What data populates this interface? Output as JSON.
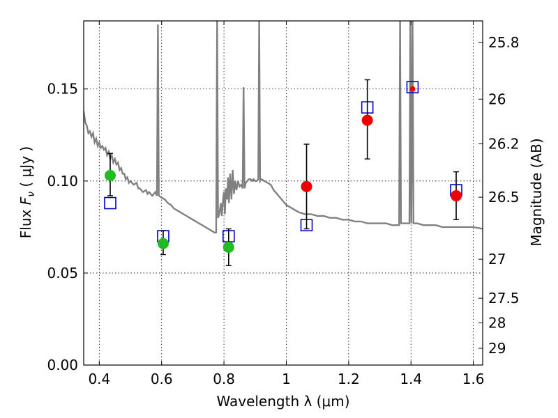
{
  "chart_data": {
    "type": "scatter",
    "xlabel": "Wavelength  λ (μm)",
    "ylabel_prefix": "Flux  ",
    "ylabel_symbol": "F",
    "ylabel_subscript": "ν",
    "ylabel_suffix": "  ( μJy )",
    "y2label": "Magnitude (AB)",
    "xlim": [
      0.35,
      1.63
    ],
    "ylim": [
      0.0,
      0.187
    ],
    "grid": true,
    "x_ticks": [
      0.4,
      0.6,
      0.8,
      1.0,
      1.2,
      1.4,
      1.6
    ],
    "x_tick_labels": [
      "0.4",
      "0.6",
      "0.8",
      "1",
      "1.2",
      "1.4",
      "1.6"
    ],
    "y_ticks": [
      0.0,
      0.05,
      0.1,
      0.15
    ],
    "y_tick_labels": [
      "0.00",
      "0.05",
      "0.10",
      "0.15"
    ],
    "y2_ticks": [
      {
        "label": "25.8",
        "flux": 0.1753
      },
      {
        "label": "26",
        "flux": 0.1445
      },
      {
        "label": "26.2",
        "flux": 0.1202
      },
      {
        "label": "26.5",
        "flux": 0.0912
      },
      {
        "label": "27",
        "flux": 0.0575
      },
      {
        "label": "27.5",
        "flux": 0.0363
      },
      {
        "label": "28",
        "flux": 0.0229
      },
      {
        "label": "29",
        "flux": 0.0091
      }
    ],
    "colors": {
      "spectrum": "#808080",
      "model": "#0000cc",
      "optical": "#22bb22",
      "infrared": "#ee0000",
      "errorbar": "#000000"
    },
    "spectrum": [
      [
        0.35,
        0.138
      ],
      [
        0.355,
        0.132
      ],
      [
        0.36,
        0.13
      ],
      [
        0.365,
        0.126
      ],
      [
        0.37,
        0.127
      ],
      [
        0.375,
        0.124
      ],
      [
        0.38,
        0.126
      ],
      [
        0.385,
        0.121
      ],
      [
        0.39,
        0.123
      ],
      [
        0.395,
        0.119
      ],
      [
        0.4,
        0.121
      ],
      [
        0.405,
        0.118
      ],
      [
        0.41,
        0.119
      ],
      [
        0.415,
        0.117
      ],
      [
        0.42,
        0.118
      ],
      [
        0.425,
        0.114
      ],
      [
        0.43,
        0.116
      ],
      [
        0.435,
        0.112
      ],
      [
        0.44,
        0.114
      ],
      [
        0.445,
        0.11
      ],
      [
        0.45,
        0.112
      ],
      [
        0.455,
        0.109
      ],
      [
        0.46,
        0.11
      ],
      [
        0.465,
        0.106
      ],
      [
        0.47,
        0.107
      ],
      [
        0.475,
        0.104
      ],
      [
        0.48,
        0.104
      ],
      [
        0.485,
        0.101
      ],
      [
        0.49,
        0.102
      ],
      [
        0.495,
        0.099
      ],
      [
        0.5,
        0.1
      ],
      [
        0.51,
        0.098
      ],
      [
        0.52,
        0.099
      ],
      [
        0.525,
        0.096
      ],
      [
        0.53,
        0.096
      ],
      [
        0.54,
        0.094
      ],
      [
        0.55,
        0.095
      ],
      [
        0.555,
        0.093
      ],
      [
        0.56,
        0.094
      ],
      [
        0.57,
        0.092
      ],
      [
        0.58,
        0.094
      ],
      [
        0.585,
        0.092
      ],
      [
        0.588,
        0.185
      ],
      [
        0.591,
        0.092
      ],
      [
        0.6,
        0.091
      ],
      [
        0.61,
        0.09
      ],
      [
        0.62,
        0.088
      ],
      [
        0.63,
        0.087
      ],
      [
        0.64,
        0.085
      ],
      [
        0.65,
        0.084
      ],
      [
        0.66,
        0.083
      ],
      [
        0.67,
        0.082
      ],
      [
        0.68,
        0.081
      ],
      [
        0.69,
        0.08
      ],
      [
        0.7,
        0.079
      ],
      [
        0.71,
        0.078
      ],
      [
        0.72,
        0.077
      ],
      [
        0.73,
        0.076
      ],
      [
        0.74,
        0.075
      ],
      [
        0.75,
        0.074
      ],
      [
        0.76,
        0.073
      ],
      [
        0.77,
        0.072
      ],
      [
        0.775,
        0.072
      ],
      [
        0.778,
        0.188
      ],
      [
        0.781,
        0.08
      ],
      [
        0.785,
        0.082
      ],
      [
        0.79,
        0.088
      ],
      [
        0.793,
        0.081
      ],
      [
        0.797,
        0.09
      ],
      [
        0.8,
        0.094
      ],
      [
        0.803,
        0.082
      ],
      [
        0.806,
        0.096
      ],
      [
        0.81,
        0.09
      ],
      [
        0.813,
        0.102
      ],
      [
        0.816,
        0.088
      ],
      [
        0.82,
        0.104
      ],
      [
        0.824,
        0.09
      ],
      [
        0.828,
        0.106
      ],
      [
        0.832,
        0.093
      ],
      [
        0.836,
        0.1
      ],
      [
        0.84,
        0.095
      ],
      [
        0.845,
        0.1
      ],
      [
        0.85,
        0.097
      ],
      [
        0.855,
        0.098
      ],
      [
        0.86,
        0.096
      ],
      [
        0.863,
        0.151
      ],
      [
        0.866,
        0.096
      ],
      [
        0.87,
        0.099
      ],
      [
        0.875,
        0.1
      ],
      [
        0.88,
        0.101
      ],
      [
        0.885,
        0.101
      ],
      [
        0.89,
        0.1
      ],
      [
        0.895,
        0.101
      ],
      [
        0.9,
        0.1
      ],
      [
        0.905,
        0.1
      ],
      [
        0.91,
        0.101
      ],
      [
        0.913,
        0.188
      ],
      [
        0.916,
        0.1
      ],
      [
        0.92,
        0.101
      ],
      [
        0.93,
        0.1
      ],
      [
        0.94,
        0.099
      ],
      [
        0.95,
        0.098
      ],
      [
        0.96,
        0.095
      ],
      [
        0.97,
        0.093
      ],
      [
        0.98,
        0.091
      ],
      [
        0.99,
        0.089
      ],
      [
        1.0,
        0.087
      ],
      [
        1.01,
        0.086
      ],
      [
        1.02,
        0.085
      ],
      [
        1.03,
        0.084
      ],
      [
        1.04,
        0.083
      ],
      [
        1.06,
        0.082
      ],
      [
        1.08,
        0.082
      ],
      [
        1.1,
        0.081
      ],
      [
        1.12,
        0.081
      ],
      [
        1.14,
        0.08
      ],
      [
        1.16,
        0.08
      ],
      [
        1.18,
        0.079
      ],
      [
        1.2,
        0.079
      ],
      [
        1.22,
        0.078
      ],
      [
        1.24,
        0.078
      ],
      [
        1.26,
        0.077
      ],
      [
        1.28,
        0.077
      ],
      [
        1.3,
        0.077
      ],
      [
        1.32,
        0.077
      ],
      [
        1.34,
        0.076
      ],
      [
        1.362,
        0.076
      ],
      [
        1.365,
        0.188
      ],
      [
        1.368,
        0.077
      ],
      [
        1.38,
        0.077
      ],
      [
        1.395,
        0.077
      ],
      [
        1.398,
        0.188
      ],
      [
        1.401,
        0.077
      ],
      [
        1.405,
        0.188
      ],
      [
        1.408,
        0.077
      ],
      [
        1.42,
        0.077
      ],
      [
        1.44,
        0.076
      ],
      [
        1.46,
        0.076
      ],
      [
        1.48,
        0.076
      ],
      [
        1.5,
        0.075
      ],
      [
        1.52,
        0.075
      ],
      [
        1.54,
        0.075
      ],
      [
        1.56,
        0.075
      ],
      [
        1.58,
        0.075
      ],
      [
        1.6,
        0.075
      ],
      [
        1.63,
        0.074
      ]
    ],
    "model_points": [
      {
        "x": 0.435,
        "y": 0.088
      },
      {
        "x": 0.605,
        "y": 0.07
      },
      {
        "x": 0.815,
        "y": 0.07
      },
      {
        "x": 1.065,
        "y": 0.076
      },
      {
        "x": 1.26,
        "y": 0.14
      },
      {
        "x": 1.405,
        "y": 0.151
      },
      {
        "x": 1.545,
        "y": 0.095
      }
    ],
    "observed_points": [
      {
        "x": 0.435,
        "y": 0.103,
        "err_lo": 0.011,
        "err_hi": 0.012,
        "group": "optical"
      },
      {
        "x": 0.605,
        "y": 0.066,
        "err_lo": 0.006,
        "err_hi": 0.007,
        "group": "optical"
      },
      {
        "x": 0.815,
        "y": 0.064,
        "err_lo": 0.01,
        "err_hi": 0.01,
        "group": "optical"
      },
      {
        "x": 1.065,
        "y": 0.097,
        "err_lo": 0.023,
        "err_hi": 0.023,
        "group": "infrared"
      },
      {
        "x": 1.26,
        "y": 0.133,
        "err_lo": 0.021,
        "err_hi": 0.022,
        "group": "infrared"
      },
      {
        "x": 1.405,
        "y": 0.15,
        "err_lo": 0.0,
        "err_hi": 0.0,
        "group": "infrared"
      },
      {
        "x": 1.545,
        "y": 0.092,
        "err_lo": 0.013,
        "err_hi": 0.013,
        "group": "infrared"
      }
    ]
  }
}
